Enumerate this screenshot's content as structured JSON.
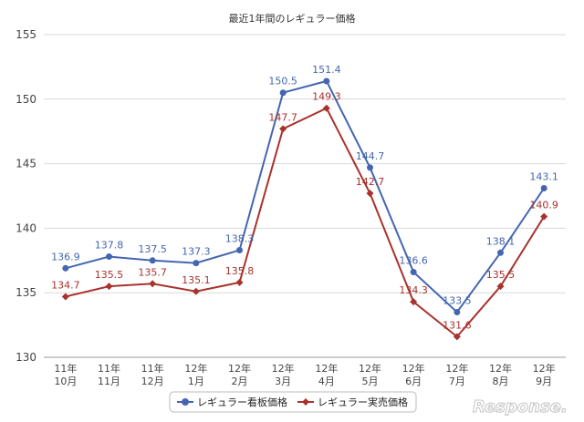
{
  "chart_data": {
    "type": "line",
    "title": "最近1年間のレギュラー価格",
    "xlabel": "",
    "ylabel": "",
    "categories": [
      [
        "11年",
        "10月"
      ],
      [
        "11年",
        "11月"
      ],
      [
        "11年",
        "12月"
      ],
      [
        "12年",
        "1月"
      ],
      [
        "12年",
        "2月"
      ],
      [
        "12年",
        "3月"
      ],
      [
        "12年",
        "4月"
      ],
      [
        "12年",
        "5月"
      ],
      [
        "12年",
        "6月"
      ],
      [
        "12年",
        "7月"
      ],
      [
        "12年",
        "8月"
      ],
      [
        "12年",
        "9月"
      ]
    ],
    "ylim": [
      130,
      155
    ],
    "yticks": [
      130,
      135,
      140,
      145,
      150,
      155
    ],
    "grid": true,
    "legend_position": "bottom-center",
    "series": [
      {
        "name": "レギュラー看板価格",
        "color": "#4466b0",
        "marker": "circle",
        "values": [
          136.9,
          137.8,
          137.5,
          137.3,
          138.3,
          150.5,
          151.4,
          144.7,
          136.6,
          133.5,
          138.1,
          143.1
        ],
        "labels": [
          "136.9",
          "137.8",
          "137.5",
          "137.3",
          "138.3",
          "150.5",
          "151.4",
          "144.7",
          "136.6",
          "133.5",
          "138.1",
          "143.1"
        ]
      },
      {
        "name": "レギュラー実売価格",
        "color": "#a8322d",
        "marker": "diamond",
        "values": [
          134.7,
          135.5,
          135.7,
          135.1,
          135.8,
          147.7,
          149.3,
          142.7,
          134.3,
          131.6,
          135.5,
          140.9
        ],
        "labels": [
          "134.7",
          "135.5",
          "135.7",
          "135.1",
          "135.8",
          "147.7",
          "149.3",
          "142.7",
          "134.3",
          "131.6",
          "135.5",
          "140.9"
        ]
      }
    ]
  },
  "watermark": {
    "text": "Response."
  }
}
